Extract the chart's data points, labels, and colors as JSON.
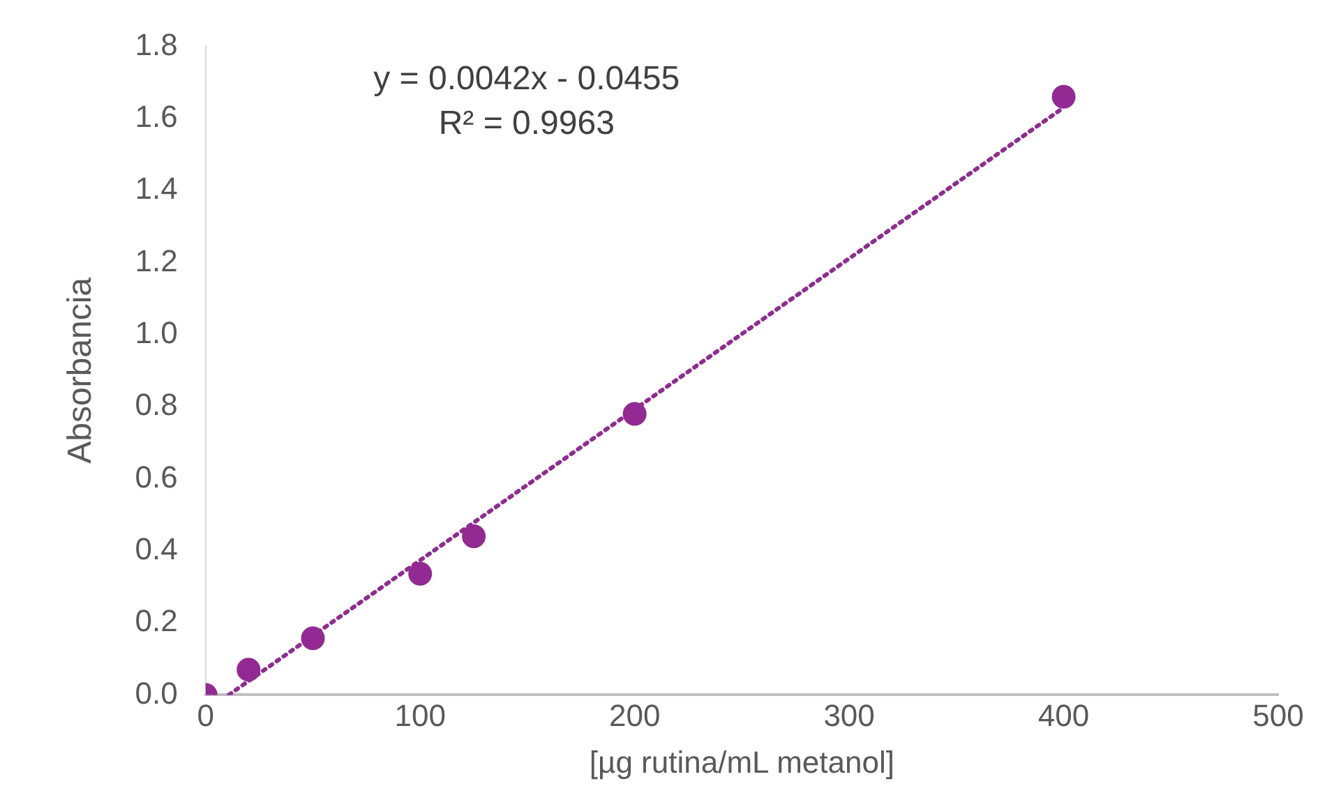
{
  "chart_data": {
    "type": "scatter",
    "xlabel": "[µg rutina/mL metanol]",
    "ylabel": "Absorbancia",
    "x": [
      0,
      20,
      50,
      100,
      125,
      200,
      400
    ],
    "series": [
      {
        "type": "scatter",
        "color": "#932a94",
        "marker": "circle",
        "values": [
          0,
          0.07,
          0.157,
          0.336,
          0.44,
          0.78,
          1.66
        ]
      },
      {
        "type": "line",
        "color": "#932a94",
        "line_style": "dotted",
        "marker": "none",
        "x": [
          10.8,
          400
        ],
        "values": [
          0,
          1.63
        ]
      }
    ],
    "xlim": [
      0,
      500
    ],
    "xticks": [
      0,
      100,
      200,
      300,
      400,
      500
    ],
    "ylim": [
      0,
      1.8
    ],
    "yticks": [
      {
        "value": 0,
        "label": "0.0"
      },
      {
        "value": 0.2,
        "label": "0.2"
      },
      {
        "value": 0.4,
        "label": "0.4"
      },
      {
        "value": 0.6,
        "label": "0.6"
      },
      {
        "value": 0.8,
        "label": "0.8"
      },
      {
        "value": 1,
        "label": "1.0"
      },
      {
        "value": 1.2,
        "label": "1.2"
      },
      {
        "value": 1.4,
        "label": "1.4"
      },
      {
        "value": 1.6,
        "label": "1.6"
      },
      {
        "value": 1.8,
        "label": "1.8"
      }
    ],
    "grid": false,
    "legend": false,
    "annotations": [
      "y = 0.0042x - 0.0455",
      "R² = 0.9963"
    ]
  }
}
